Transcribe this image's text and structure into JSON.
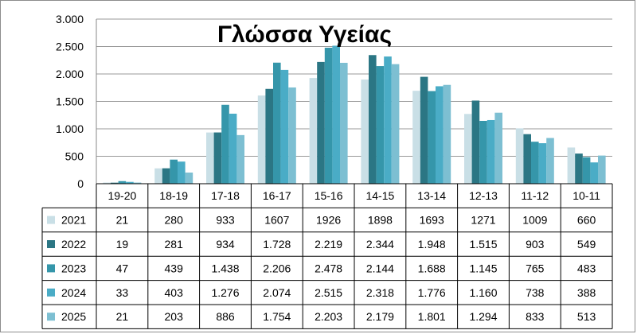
{
  "chart_data": {
    "type": "bar",
    "title": "Γλώσσα Υγείας",
    "categories": [
      "19-20",
      "18-19",
      "17-18",
      "16-17",
      "15-16",
      "14-15",
      "13-14",
      "12-13",
      "11-12",
      "10-11"
    ],
    "series": [
      {
        "name": "2021",
        "color": "#c9dfe6",
        "values": [
          21,
          280,
          933,
          1607,
          1926,
          1898,
          1693,
          1271,
          1009,
          660
        ],
        "labels": [
          "21",
          "280",
          "933",
          "1607",
          "1926",
          "1898",
          "1693",
          "1271",
          "1009",
          "660"
        ]
      },
      {
        "name": "2022",
        "color": "#2b7684",
        "values": [
          19,
          281,
          934,
          1728,
          2219,
          2344,
          1948,
          1515,
          903,
          549
        ],
        "labels": [
          "19",
          "281",
          "934",
          "1.728",
          "2.219",
          "2.344",
          "1.948",
          "1.515",
          "903",
          "549"
        ]
      },
      {
        "name": "2023",
        "color": "#3596aa",
        "values": [
          47,
          439,
          1438,
          2206,
          2478,
          2144,
          1688,
          1145,
          765,
          483
        ],
        "labels": [
          "47",
          "439",
          "1.438",
          "2.206",
          "2.478",
          "2.144",
          "1.688",
          "1.145",
          "765",
          "483"
        ]
      },
      {
        "name": "2024",
        "color": "#4aacc6",
        "values": [
          33,
          403,
          1276,
          2074,
          2515,
          2318,
          1776,
          1160,
          738,
          388
        ],
        "labels": [
          "33",
          "403",
          "1.276",
          "2.074",
          "2.515",
          "2.318",
          "1.776",
          "1.160",
          "738",
          "388"
        ]
      },
      {
        "name": "2025",
        "color": "#7dbfd2",
        "values": [
          21,
          203,
          886,
          1754,
          2203,
          2179,
          1801,
          1294,
          833,
          513
        ],
        "labels": [
          "21",
          "203",
          "886",
          "1.754",
          "2.203",
          "2.179",
          "1.801",
          "1.294",
          "833",
          "513"
        ]
      }
    ],
    "ylim": [
      0,
      3000
    ],
    "yticks": [
      0,
      500,
      1000,
      1500,
      2000,
      2500,
      3000
    ],
    "ytick_labels": [
      "0",
      "500",
      "1.000",
      "1.500",
      "2.000",
      "2.500",
      "3.000"
    ],
    "grid": true,
    "legend": "data-table-left"
  }
}
